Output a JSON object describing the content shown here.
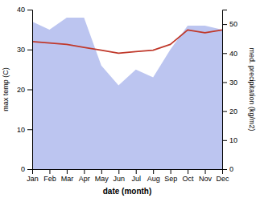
{
  "chart_data": {
    "type": "area",
    "xlabel": "date (month)",
    "ylabel": "max temp (C)",
    "y2label": "med. precipitation (kg/m2)",
    "categories": [
      "Jan",
      "Feb",
      "Mar",
      "Apr",
      "May",
      "Jun",
      "Jul",
      "Aug",
      "Sep",
      "Oct",
      "Nov",
      "Dec"
    ],
    "series": [
      {
        "type": "area",
        "color": "#bcc5f0",
        "values": [
          37,
          35,
          38,
          38,
          26,
          21,
          25,
          23,
          30,
          36,
          36,
          35
        ]
      },
      {
        "type": "line",
        "color": "#c0392b",
        "axis": "y2",
        "values": [
          44,
          43.5,
          43,
          42,
          41,
          40,
          40.5,
          41,
          43,
          48,
          47,
          48
        ]
      }
    ],
    "ylim": [
      0,
      40
    ],
    "yticks": [
      0,
      10,
      20,
      30,
      40
    ],
    "y2lim": [
      0,
      55
    ],
    "y2ticks": [
      0,
      10,
      20,
      30,
      40,
      50
    ],
    "grid": false
  }
}
